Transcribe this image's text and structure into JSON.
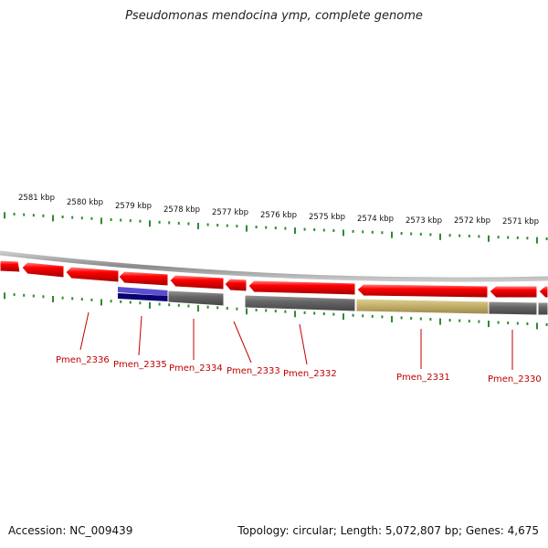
{
  "title": "Pseudomonas mendocina ymp, complete genome",
  "footer": {
    "accession": "Accession: NC_009439",
    "stats": "Topology: circular; Length: 5,072,807 bp; Genes: 4,675"
  },
  "colors": {
    "forward_gene": "#ff0000",
    "reverse_gene_grey": "#666666",
    "reverse_gene_olive": "#c8b46e",
    "reverse_gene_blue": "#5a4fd0",
    "tick": "#2e8b2e",
    "backbone": "#888888",
    "label": "#c00000"
  },
  "kbp_labels": [
    "2581 kbp",
    "2580 kbp",
    "2579 kbp",
    "2578 kbp",
    "2577 kbp",
    "2576 kbp",
    "2575 kbp",
    "2574 kbp",
    "2573 kbp",
    "2572 kbp",
    "2571 kbp"
  ],
  "gene_labels": [
    "Pmen_2336",
    "Pmen_2335",
    "Pmen_2334",
    "Pmen_2333",
    "Pmen_2332",
    "Pmen_2331",
    "Pmen_2330"
  ]
}
